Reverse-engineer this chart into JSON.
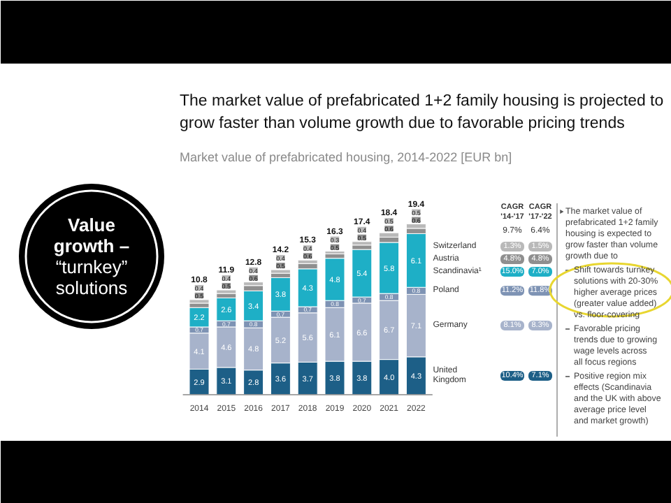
{
  "chart_data": [
    {
      "type": "bar",
      "stacked": true,
      "legend": "right",
      "title": "The market value of prefabricated 1+2 family housing is projected to grow faster than volume growth due to favorable pricing trends",
      "subtitle": "Market value of prefabricated housing, 2014-2022 [EUR bn]",
      "categories": [
        "2014",
        "2015",
        "2016",
        "2017",
        "2018",
        "2019",
        "2020",
        "2021",
        "2022"
      ],
      "series": [
        {
          "name": "United Kingdom",
          "color": "#1d5f87",
          "values": [
            2.9,
            3.1,
            2.8,
            3.6,
            3.7,
            3.8,
            3.8,
            4.0,
            4.3
          ],
          "value_labels": [
            "2.9",
            "3.1",
            "2.8",
            "3.6",
            "3.7",
            "3.8",
            "3.8",
            "4.0",
            "4.3"
          ]
        },
        {
          "name": "Germany",
          "color": "#a7b3cb",
          "values": [
            4.1,
            4.6,
            4.8,
            5.2,
            5.6,
            6.1,
            6.6,
            6.7,
            7.1
          ],
          "value_labels": [
            "4.1",
            "4.6",
            "4.8",
            "5.2",
            "5.6",
            "6.1",
            "6.6",
            "6.7",
            "7.1"
          ]
        },
        {
          "name": "Poland",
          "color": "#7e93b4",
          "values": [
            0.7,
            0.7,
            0.8,
            0.7,
            0.7,
            0.8,
            0.7,
            0.8,
            0.8
          ],
          "value_labels": [
            "0.7",
            "0.7",
            "0.8",
            "0.7",
            "0.7",
            "0.8",
            "0.7",
            "0.8",
            "0.8"
          ]
        },
        {
          "name": "Scandinavia¹",
          "color": "#1eafc6",
          "values": [
            2.2,
            2.6,
            3.4,
            3.8,
            4.3,
            4.8,
            5.4,
            5.8,
            6.1
          ],
          "value_labels": [
            "2.2",
            "2.6",
            "3.4",
            "3.8",
            "4.3",
            "4.8",
            "5.4",
            "5.8",
            "6.1"
          ]
        },
        {
          "name": "Austria",
          "color": "#8f8f8f",
          "values": [
            0.5,
            0.5,
            0.6,
            0.5,
            0.6,
            0.5,
            0.5,
            0.6,
            0.6
          ],
          "value_labels": [
            "0.5",
            "0.5",
            "0.6",
            "0.5",
            "0.6",
            "0.5",
            "0.5",
            "0.6",
            "0.6"
          ]
        },
        {
          "name": "Switzerland",
          "color": "#b9b9b9",
          "values": [
            0.4,
            0.4,
            0.4,
            0.4,
            0.4,
            0.3,
            0.4,
            0.5,
            0.5
          ],
          "value_labels": [
            "0.4",
            "0.4",
            "0.4",
            "0.4",
            "0.4",
            "0.3",
            "0.4",
            "0.5",
            "0.5"
          ]
        }
      ],
      "totals": [
        "10.8",
        "11.9",
        "12.8",
        "14.2",
        "15.3",
        "16.3",
        "17.4",
        "18.4",
        "19.4"
      ],
      "annotations": [
        "CAGR '14-'17",
        "CAGR '17-'22",
        "9.7%",
        "6.4%",
        "10.4%",
        "7.1%",
        "8.1%",
        "8.3%",
        "11.2%",
        "11.8%",
        "15.0%",
        "7.0%",
        "4.8%",
        "4.8%",
        "1.3%",
        "1.5%"
      ]
    },
    {
      "type": "other",
      "title": "Value growth –",
      "subtitle": "“turnkey” solutions"
    },
    {
      "type": "other",
      "annotations": [
        "The market value of prefabricated 1+2 family housing is expected to grow faster than volume growth due to",
        "Shift towards turnkey solutions with 20-30% higher average prices (greater value added) vs. floor-covering",
        "Favorable pricing trends due to growing wage levels across all focus regions",
        "Positive region mix effects (Scandinavia and the UK with above average price level and market growth)"
      ]
    }
  ]
}
